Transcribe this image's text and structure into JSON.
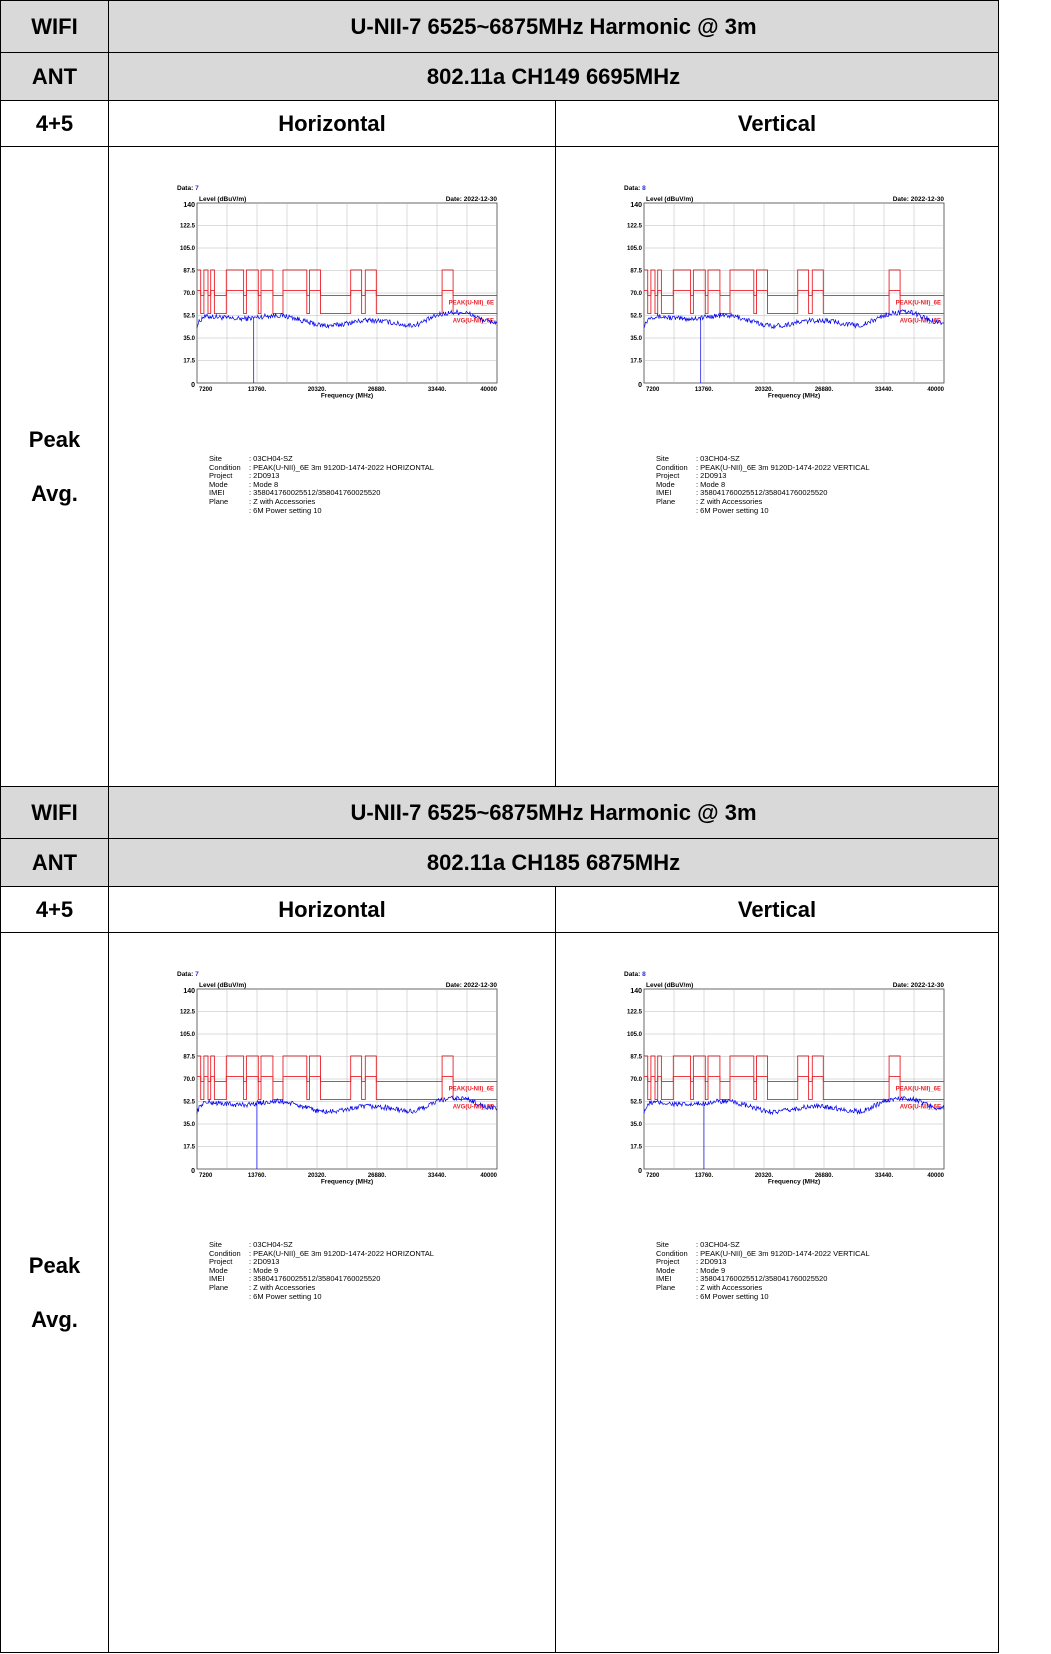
{
  "sections": [
    {
      "wifi_label": "WIFI",
      "title": "U-NII-7 6525~6875MHz Harmonic @ 3m",
      "ant_label": "ANT",
      "channel": "802.11a CH149 6695MHz",
      "ant_value": "4+5",
      "col_h": "Horizontal",
      "col_v": "Vertical",
      "row_label_1": "Peak",
      "row_label_2": "Avg."
    },
    {
      "wifi_label": "WIFI",
      "title": "U-NII-7 6525~6875MHz Harmonic @ 3m",
      "ant_label": "ANT",
      "channel": "802.11a CH185 6875MHz",
      "ant_value": "4+5",
      "col_h": "Horizontal",
      "col_v": "Vertical",
      "row_label_1": "Peak",
      "row_label_2": "Avg."
    }
  ],
  "chart_data": [
    {
      "type": "line",
      "section": 0,
      "polarization": "horizontal",
      "data_label": "Data:",
      "data_num": "7",
      "date": "Date: 2022-12-30",
      "ylabel": "Level (dBuV/m)",
      "xlabel": "Frequency (MHz)",
      "ylim": [
        0,
        140
      ],
      "xlim": [
        7200,
        40000
      ],
      "yticks": [
        "0",
        "17.5",
        "35.0",
        "52.5",
        "70.0",
        "87.5",
        "105.0",
        "122.5",
        "140"
      ],
      "xticks": [
        "7200",
        "13760.",
        "20320.",
        "26880.",
        "33440.",
        "40000"
      ],
      "limit_peak_label": "PEAK(U-NII)_6E",
      "limit_avg_label": "AVG(U-NII)_6E",
      "limit_peak_high": 88,
      "limit_peak_low": 68,
      "limit_avg_high": 72,
      "limit_avg_low": 54,
      "marker_freq": 13400,
      "info": [
        {
          "k": "Site",
          "v": ": 03CH04-SZ"
        },
        {
          "k": "Condition",
          "v": ": PEAK(U-NII)_6E 3m 9120D-1474-2022 HORIZONTAL"
        },
        {
          "k": "Project",
          "v": ": 2D0913"
        },
        {
          "k": "Mode",
          "v": ": Mode 8"
        },
        {
          "k": "IMEI",
          "v": ": 358041760025512/358041760025520"
        },
        {
          "k": "Plane",
          "v": ": Z with  Accessories"
        },
        {
          "k": "",
          "v": ": 6M Power setting 10"
        }
      ]
    },
    {
      "type": "line",
      "section": 0,
      "polarization": "vertical",
      "data_label": "Data:",
      "data_num": "8",
      "date": "Date: 2022-12-30",
      "ylabel": "Level (dBuV/m)",
      "xlabel": "Frequency (MHz)",
      "ylim": [
        0,
        140
      ],
      "xlim": [
        7200,
        40000
      ],
      "yticks": [
        "0",
        "17.5",
        "35.0",
        "52.5",
        "70.0",
        "87.5",
        "105.0",
        "122.5",
        "140"
      ],
      "xticks": [
        "7200",
        "13760.",
        "20320.",
        "26880.",
        "33440.",
        "40000"
      ],
      "limit_peak_label": "PEAK(U-NII)_6E",
      "limit_avg_label": "AVG(U-NII)_6E",
      "limit_peak_high": 88,
      "limit_peak_low": 68,
      "limit_avg_high": 72,
      "limit_avg_low": 54,
      "marker_freq": 13400,
      "info": [
        {
          "k": "Site",
          "v": ": 03CH04-SZ"
        },
        {
          "k": "Condition",
          "v": ": PEAK(U-NII)_6E 3m 9120D-1474-2022 VERTICAL"
        },
        {
          "k": "Project",
          "v": ": 2D0913"
        },
        {
          "k": "Mode",
          "v": ": Mode 8"
        },
        {
          "k": "IMEI",
          "v": ": 358041760025512/358041760025520"
        },
        {
          "k": "Plane",
          "v": ": Z with  Accessories"
        },
        {
          "k": "",
          "v": ": 6M Power setting 10"
        }
      ]
    },
    {
      "type": "line",
      "section": 1,
      "polarization": "horizontal",
      "data_label": "Data:",
      "data_num": "7",
      "date": "Date: 2022-12-30",
      "ylabel": "Level (dBuV/m)",
      "xlabel": "Frequency (MHz)",
      "ylim": [
        0,
        140
      ],
      "xlim": [
        7200,
        40000
      ],
      "yticks": [
        "0",
        "17.5",
        "35.0",
        "52.5",
        "70.0",
        "87.5",
        "105.0",
        "122.5",
        "140"
      ],
      "xticks": [
        "7200",
        "13760.",
        "20320.",
        "26880.",
        "33440.",
        "40000"
      ],
      "limit_peak_label": "PEAK(U-NII)_6E",
      "limit_avg_label": "AVG(U-NII)_6E",
      "limit_peak_high": 88,
      "limit_peak_low": 68,
      "limit_avg_high": 72,
      "limit_avg_low": 54,
      "marker_freq": 13750,
      "info": [
        {
          "k": "Site",
          "v": ": 03CH04-SZ"
        },
        {
          "k": "Condition",
          "v": ": PEAK(U-NII)_6E 3m 9120D-1474-2022 HORIZONTAL"
        },
        {
          "k": "Project",
          "v": ": 2D0913"
        },
        {
          "k": "Mode",
          "v": ": Mode 9"
        },
        {
          "k": "IMEI",
          "v": ": 358041760025512/358041760025520"
        },
        {
          "k": "Plane",
          "v": ": Z with  Accessories"
        },
        {
          "k": "",
          "v": ": 6M Power setting 10"
        }
      ]
    },
    {
      "type": "line",
      "section": 1,
      "polarization": "vertical",
      "data_label": "Data:",
      "data_num": "8",
      "date": "Date: 2022-12-30",
      "ylabel": "Level (dBuV/m)",
      "xlabel": "Frequency (MHz)",
      "ylim": [
        0,
        140
      ],
      "xlim": [
        7200,
        40000
      ],
      "yticks": [
        "0",
        "17.5",
        "35.0",
        "52.5",
        "70.0",
        "87.5",
        "105.0",
        "122.5",
        "140"
      ],
      "xticks": [
        "7200",
        "13760.",
        "20320.",
        "26880.",
        "33440.",
        "40000"
      ],
      "limit_peak_label": "PEAK(U-NII)_6E",
      "limit_avg_label": "AVG(U-NII)_6E",
      "limit_peak_high": 88,
      "limit_peak_low": 68,
      "limit_avg_high": 72,
      "limit_avg_low": 54,
      "marker_freq": 13750,
      "info": [
        {
          "k": "Site",
          "v": ": 03CH04-SZ"
        },
        {
          "k": "Condition",
          "v": ": PEAK(U-NII)_6E 3m 9120D-1474-2022 VERTICAL"
        },
        {
          "k": "Project",
          "v": ": 2D0913"
        },
        {
          "k": "Mode",
          "v": ": Mode 9"
        },
        {
          "k": "IMEI",
          "v": ": 358041760025512/358041760025520"
        },
        {
          "k": "Plane",
          "v": ": Z with  Accessories"
        },
        {
          "k": "",
          "v": ": 6M Power setting 10"
        }
      ]
    }
  ],
  "limit_segments": [
    [
      7200,
      7600,
      1
    ],
    [
      7600,
      7950,
      0
    ],
    [
      7950,
      8400,
      1
    ],
    [
      8400,
      8700,
      0
    ],
    [
      8700,
      9100,
      1
    ],
    [
      9100,
      10400,
      0
    ],
    [
      10400,
      12300,
      1
    ],
    [
      12300,
      12600,
      0
    ],
    [
      12600,
      13900,
      1
    ],
    [
      13900,
      14200,
      0
    ],
    [
      14200,
      15500,
      1
    ],
    [
      15500,
      16600,
      0
    ],
    [
      16600,
      19200,
      1
    ],
    [
      19200,
      19500,
      0
    ],
    [
      19500,
      20700,
      1
    ],
    [
      20700,
      24000,
      0
    ],
    [
      24000,
      25200,
      1
    ],
    [
      25200,
      25600,
      0
    ],
    [
      25600,
      26800,
      1
    ],
    [
      26800,
      34000,
      0
    ],
    [
      34000,
      35200,
      1
    ],
    [
      35200,
      40000,
      0
    ]
  ],
  "colors": {
    "header_bg": "#d9d9d9",
    "limit": "#e8212a",
    "trace": "#0000ee",
    "grid": "#b8b8b8",
    "data_num": "#2727d0"
  }
}
